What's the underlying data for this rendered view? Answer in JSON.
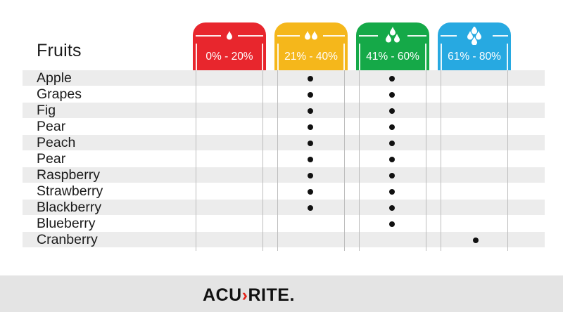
{
  "table": {
    "header_label": "Fruits",
    "columns": [
      {
        "label": "0% - 20%",
        "color": "#e8262d",
        "drops": 1
      },
      {
        "label": "21% - 40%",
        "color": "#f5b71b",
        "drops": 2
      },
      {
        "label": "41% - 60%",
        "color": "#15a948",
        "drops": 3
      },
      {
        "label": "61% - 80%",
        "color": "#27a9e1",
        "drops": 4
      }
    ],
    "rows": [
      {
        "fruit": "Apple",
        "marks": [
          false,
          true,
          true,
          false
        ]
      },
      {
        "fruit": "Grapes",
        "marks": [
          false,
          true,
          true,
          false
        ]
      },
      {
        "fruit": "Fig",
        "marks": [
          false,
          true,
          true,
          false
        ]
      },
      {
        "fruit": "Pear",
        "marks": [
          false,
          true,
          true,
          false
        ]
      },
      {
        "fruit": "Peach",
        "marks": [
          false,
          true,
          true,
          false
        ]
      },
      {
        "fruit": "Pear",
        "marks": [
          false,
          true,
          true,
          false
        ]
      },
      {
        "fruit": "Raspberry",
        "marks": [
          false,
          true,
          true,
          false
        ]
      },
      {
        "fruit": "Strawberry",
        "marks": [
          false,
          true,
          true,
          false
        ]
      },
      {
        "fruit": "Blackberry",
        "marks": [
          false,
          true,
          true,
          false
        ]
      },
      {
        "fruit": "Blueberry",
        "marks": [
          false,
          false,
          true,
          false
        ]
      },
      {
        "fruit": "Cranberry",
        "marks": [
          false,
          false,
          false,
          true
        ]
      }
    ]
  },
  "footer": {
    "brand_left": "ACU",
    "brand_chevron": "›",
    "brand_right": "RITE",
    "brand_mark": ".",
    "brand_accent_color": "#e2231a"
  }
}
